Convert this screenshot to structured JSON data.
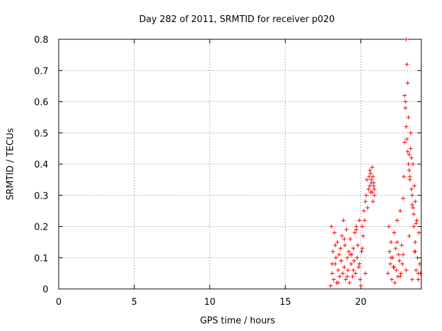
{
  "chart_data": {
    "type": "scatter",
    "title": "Day 282 of 2011, SRMTID for receiver p020",
    "xlabel": "GPS time / hours",
    "ylabel": "SRMTID / TECUs",
    "xlim": [
      0,
      24
    ],
    "ylim": [
      0,
      0.8
    ],
    "xticks": [
      0,
      5,
      10,
      15,
      20
    ],
    "xtick_labels": [
      "0",
      "5",
      "10",
      "15",
      "20"
    ],
    "yticks": [
      0,
      0.1,
      0.2,
      0.3,
      0.4,
      0.5,
      0.6,
      0.7,
      0.8
    ],
    "ytick_labels": [
      "0",
      "0.1",
      "0.2",
      "0.3",
      "0.4",
      "0.5",
      "0.6",
      "0.7",
      "0.8"
    ],
    "grid": true,
    "marker": "+",
    "marker_color": "#ff0000",
    "series": [
      {
        "name": "p020",
        "x": [
          18.0,
          18.05,
          18.1,
          18.15,
          18.2,
          18.25,
          18.3,
          18.35,
          18.4,
          18.45,
          18.5,
          18.55,
          18.6,
          18.65,
          18.7,
          18.75,
          18.8,
          18.85,
          18.9,
          18.95,
          19.0,
          19.05,
          19.1,
          19.15,
          19.2,
          19.25,
          19.3,
          19.35,
          19.4,
          19.45,
          19.5,
          19.55,
          19.6,
          19.65,
          19.7,
          19.75,
          19.8,
          19.85,
          19.9,
          19.95,
          20.0,
          20.05,
          20.1,
          20.15,
          20.2,
          20.25,
          20.3,
          20.35,
          20.4,
          20.45,
          20.5,
          20.55,
          20.6,
          20.65,
          20.7,
          20.75,
          20.8,
          20.85,
          20.9,
          21.8,
          21.85,
          21.9,
          21.95,
          22.0,
          22.05,
          22.1,
          22.15,
          22.2,
          22.25,
          22.3,
          22.35,
          22.4,
          22.45,
          22.5,
          22.55,
          22.6,
          22.65,
          22.7,
          22.75,
          22.8,
          22.85,
          22.9,
          22.95,
          23.0,
          23.05,
          23.1,
          23.15,
          23.2,
          23.25,
          23.3,
          23.35,
          23.4,
          23.45,
          23.5,
          23.55,
          23.6,
          23.65,
          23.7,
          23.75,
          23.8,
          23.85,
          23.9,
          23.95,
          18.1,
          18.3,
          18.5,
          18.7,
          18.9,
          19.1,
          19.3,
          19.5,
          19.7,
          19.9,
          20.1,
          20.3,
          22.0,
          22.2,
          22.4,
          22.6,
          22.8,
          23.0,
          23.2,
          23.4,
          23.6,
          23.8,
          20.6,
          20.65,
          20.7,
          20.75,
          20.8,
          20.85,
          20.9,
          22.9,
          22.95,
          23.0,
          23.05,
          23.1,
          23.15,
          23.2,
          23.25,
          23.3,
          23.35,
          23.4,
          23.45,
          23.5,
          23.55,
          23.6,
          23.65
        ],
        "y": [
          0.01,
          0.2,
          0.05,
          0.12,
          0.03,
          0.18,
          0.08,
          0.1,
          0.02,
          0.15,
          0.06,
          0.11,
          0.04,
          0.13,
          0.09,
          0.17,
          0.05,
          0.22,
          0.07,
          0.14,
          0.03,
          0.19,
          0.1,
          0.06,
          0.12,
          0.02,
          0.16,
          0.08,
          0.11,
          0.04,
          0.13,
          0.09,
          0.18,
          0.05,
          0.2,
          0.1,
          0.14,
          0.07,
          0.22,
          0.03,
          0.01,
          0.12,
          0.2,
          0.17,
          0.25,
          0.22,
          0.28,
          0.3,
          0.35,
          0.26,
          0.32,
          0.36,
          0.38,
          0.31,
          0.34,
          0.39,
          0.28,
          0.33,
          0.3,
          0.05,
          0.2,
          0.12,
          0.08,
          0.15,
          0.03,
          0.1,
          0.07,
          0.18,
          0.02,
          0.13,
          0.06,
          0.22,
          0.04,
          0.11,
          0.09,
          0.25,
          0.05,
          0.14,
          0.08,
          0.29,
          0.36,
          0.47,
          0.6,
          0.8,
          0.72,
          0.66,
          0.55,
          0.43,
          0.36,
          0.5,
          0.32,
          0.27,
          0.4,
          0.2,
          0.12,
          0.15,
          0.06,
          0.22,
          0.1,
          0.03,
          0.18,
          0.08,
          0.05,
          0.08,
          0.14,
          0.02,
          0.09,
          0.16,
          0.04,
          0.11,
          0.06,
          0.19,
          0.08,
          0.13,
          0.05,
          0.1,
          0.07,
          0.15,
          0.04,
          0.11,
          0.06,
          0.17,
          0.03,
          0.12,
          0.05,
          0.33,
          0.37,
          0.35,
          0.31,
          0.36,
          0.34,
          0.32,
          0.62,
          0.58,
          0.52,
          0.48,
          0.44,
          0.4,
          0.38,
          0.35,
          0.45,
          0.42,
          0.3,
          0.26,
          0.24,
          0.33,
          0.28,
          0.21
        ]
      }
    ]
  }
}
